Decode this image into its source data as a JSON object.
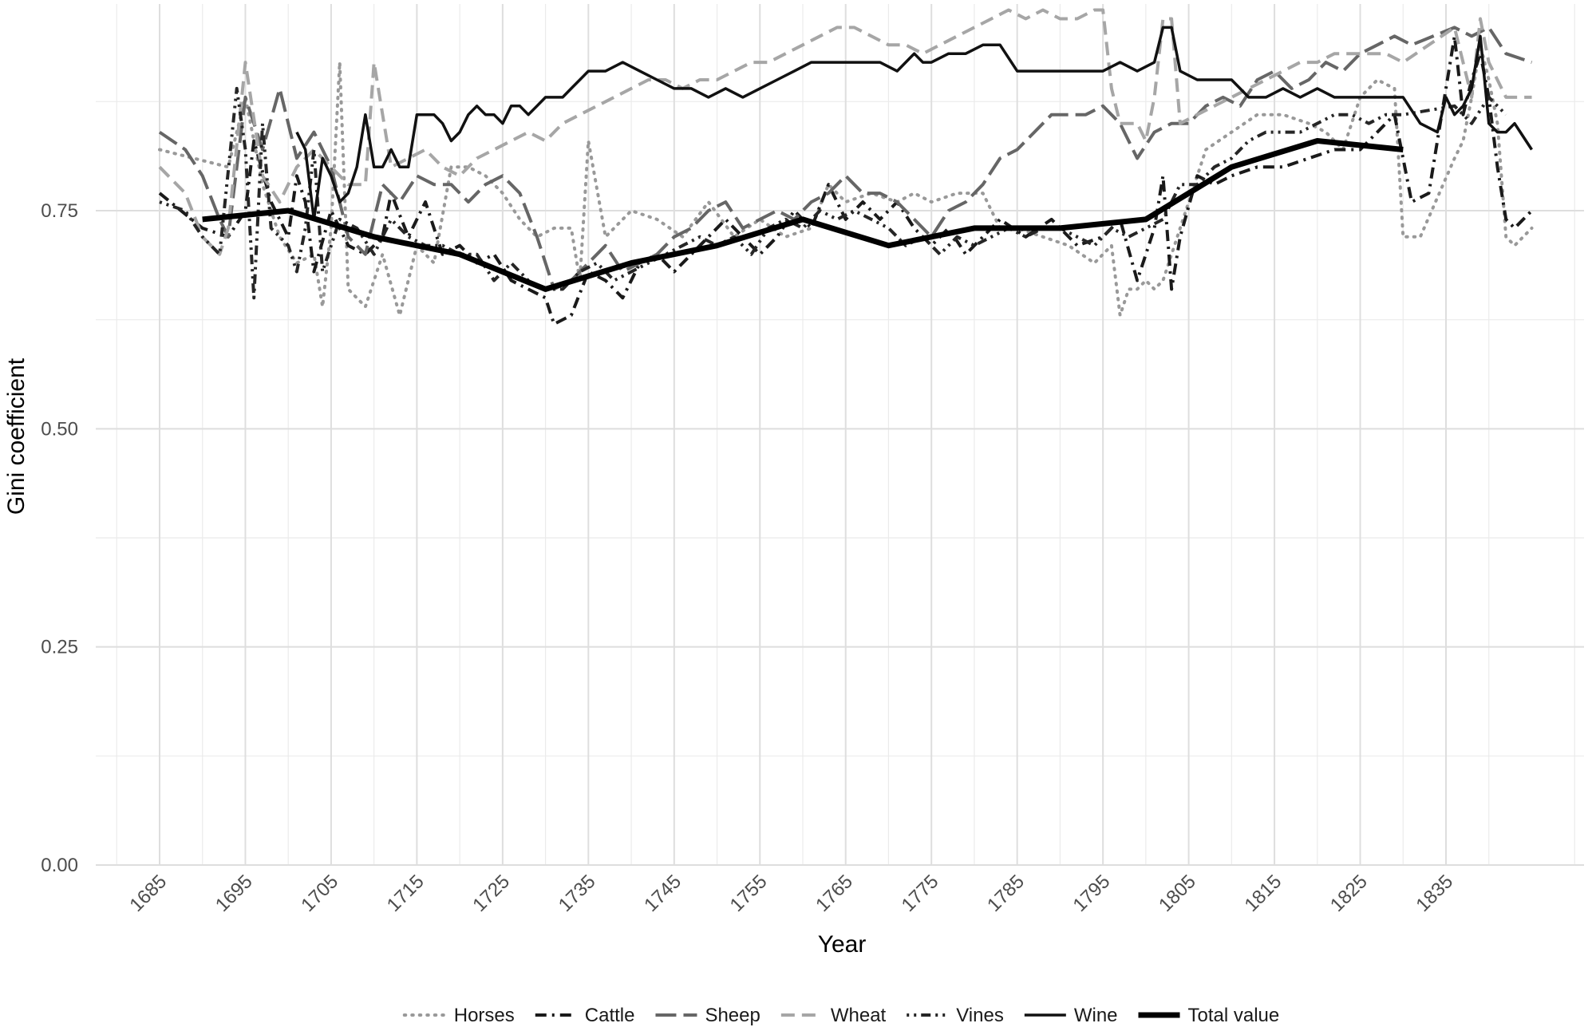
{
  "chart_data": {
    "type": "line",
    "xlabel": "Year",
    "ylabel": "Gini coefficient",
    "xlim": [
      1680,
      1853
    ],
    "ylim": [
      0,
      0.99
    ],
    "x_ticks": [
      "1685",
      "1695",
      "1705",
      "1715",
      "1725",
      "1735",
      "1745",
      "1755",
      "1765",
      "1775",
      "1785",
      "1795",
      "1805",
      "1815",
      "1825",
      "1835"
    ],
    "y_ticks": [
      "0.00",
      "0.25",
      "0.50",
      "0.75"
    ],
    "grid": true,
    "legend_position": "bottom",
    "series": [
      {
        "name": "Horses",
        "style": "dotted",
        "color": "#999999",
        "x": [
          1685,
          1689,
          1693,
          1695,
          1697,
          1699,
          1701,
          1703,
          1704,
          1705,
          1706,
          1707,
          1709,
          1711,
          1713,
          1715,
          1717,
          1719,
          1721,
          1723,
          1725,
          1727,
          1729,
          1731,
          1733,
          1734,
          1735,
          1737,
          1740,
          1743,
          1746,
          1749,
          1752,
          1755,
          1758,
          1761,
          1763,
          1765,
          1768,
          1771,
          1773,
          1775,
          1778,
          1781,
          1783,
          1785,
          1788,
          1791,
          1794,
          1796,
          1797,
          1798,
          1799,
          1800,
          1801,
          1802,
          1804,
          1807,
          1810,
          1813,
          1816,
          1819,
          1821,
          1823,
          1825,
          1827,
          1829,
          1830,
          1832,
          1836,
          1837,
          1838,
          1839,
          1840,
          1841,
          1842,
          1843,
          1845
        ],
        "y": [
          0.82,
          0.81,
          0.8,
          0.88,
          0.78,
          0.72,
          0.69,
          0.7,
          0.64,
          0.73,
          0.92,
          0.66,
          0.64,
          0.7,
          0.63,
          0.71,
          0.69,
          0.8,
          0.8,
          0.79,
          0.77,
          0.74,
          0.72,
          0.73,
          0.73,
          0.67,
          0.83,
          0.72,
          0.75,
          0.74,
          0.72,
          0.76,
          0.72,
          0.74,
          0.72,
          0.73,
          0.78,
          0.76,
          0.77,
          0.76,
          0.77,
          0.76,
          0.77,
          0.77,
          0.73,
          0.73,
          0.72,
          0.71,
          0.69,
          0.71,
          0.63,
          0.66,
          0.66,
          0.67,
          0.66,
          0.67,
          0.73,
          0.82,
          0.84,
          0.86,
          0.86,
          0.85,
          0.84,
          0.82,
          0.88,
          0.9,
          0.89,
          0.72,
          0.72,
          0.81,
          0.83,
          0.88,
          0.94,
          0.9,
          0.85,
          0.72,
          0.71,
          0.73
        ]
      },
      {
        "name": "Cattle",
        "style": "dashdot",
        "color": "#1a1a1a",
        "x": [
          1685,
          1690,
          1693,
          1695,
          1696,
          1698,
          1700,
          1701,
          1702,
          1703,
          1705,
          1707,
          1709,
          1711,
          1712,
          1714,
          1716,
          1718,
          1720,
          1722,
          1724,
          1726,
          1728,
          1730,
          1731,
          1733,
          1735,
          1737,
          1739,
          1741,
          1743,
          1745,
          1747,
          1749,
          1751,
          1753,
          1755,
          1757,
          1759,
          1761,
          1763,
          1765,
          1767,
          1769,
          1771,
          1773,
          1775,
          1777,
          1779,
          1781,
          1783,
          1786,
          1789,
          1792,
          1795,
          1797,
          1799,
          1800,
          1801,
          1802,
          1803,
          1804,
          1806,
          1808,
          1810,
          1813,
          1816,
          1819,
          1822,
          1825,
          1827,
          1829,
          1831,
          1833,
          1836,
          1837,
          1838,
          1839,
          1840,
          1841,
          1842,
          1843,
          1845
        ],
        "y": [
          0.77,
          0.73,
          0.72,
          0.75,
          0.83,
          0.76,
          0.72,
          0.79,
          0.76,
          0.68,
          0.75,
          0.71,
          0.7,
          0.72,
          0.77,
          0.72,
          0.76,
          0.7,
          0.71,
          0.69,
          0.7,
          0.67,
          0.66,
          0.65,
          0.62,
          0.63,
          0.68,
          0.67,
          0.65,
          0.69,
          0.7,
          0.68,
          0.7,
          0.72,
          0.74,
          0.72,
          0.7,
          0.72,
          0.75,
          0.73,
          0.78,
          0.74,
          0.76,
          0.74,
          0.76,
          0.73,
          0.71,
          0.73,
          0.7,
          0.72,
          0.74,
          0.72,
          0.74,
          0.71,
          0.72,
          0.74,
          0.67,
          0.7,
          0.73,
          0.79,
          0.66,
          0.72,
          0.79,
          0.78,
          0.79,
          0.8,
          0.8,
          0.81,
          0.82,
          0.82,
          0.84,
          0.86,
          0.76,
          0.77,
          0.95,
          0.86,
          0.9,
          0.93,
          0.88,
          0.8,
          0.74,
          0.73,
          0.75
        ]
      },
      {
        "name": "Sheep",
        "style": "longdash",
        "color": "#666666",
        "x": [
          1685,
          1688,
          1690,
          1692,
          1693,
          1695,
          1697,
          1699,
          1701,
          1703,
          1705,
          1707,
          1709,
          1711,
          1713,
          1715,
          1717,
          1719,
          1721,
          1723,
          1725,
          1727,
          1729,
          1731,
          1733,
          1735,
          1737,
          1739,
          1741,
          1743,
          1745,
          1747,
          1749,
          1751,
          1753,
          1755,
          1757,
          1759,
          1761,
          1763,
          1765,
          1767,
          1769,
          1771,
          1773,
          1775,
          1777,
          1779,
          1781,
          1783,
          1785,
          1787,
          1789,
          1791,
          1793,
          1795,
          1797,
          1799,
          1801,
          1803,
          1805,
          1807,
          1809,
          1811,
          1813,
          1815,
          1817,
          1819,
          1821,
          1823,
          1825,
          1827,
          1829,
          1831,
          1836,
          1838,
          1840,
          1842,
          1845
        ],
        "y": [
          0.84,
          0.82,
          0.79,
          0.74,
          0.72,
          0.88,
          0.82,
          0.89,
          0.81,
          0.84,
          0.8,
          0.72,
          0.7,
          0.78,
          0.76,
          0.79,
          0.78,
          0.78,
          0.76,
          0.78,
          0.79,
          0.77,
          0.72,
          0.66,
          0.67,
          0.69,
          0.71,
          0.68,
          0.69,
          0.7,
          0.72,
          0.73,
          0.75,
          0.76,
          0.73,
          0.74,
          0.75,
          0.74,
          0.76,
          0.77,
          0.79,
          0.77,
          0.77,
          0.76,
          0.74,
          0.72,
          0.75,
          0.76,
          0.78,
          0.81,
          0.82,
          0.84,
          0.86,
          0.86,
          0.86,
          0.87,
          0.85,
          0.81,
          0.84,
          0.85,
          0.85,
          0.87,
          0.88,
          0.87,
          0.9,
          0.91,
          0.89,
          0.9,
          0.92,
          0.91,
          0.93,
          0.94,
          0.95,
          0.94,
          0.96,
          0.95,
          0.96,
          0.93,
          0.92
        ]
      },
      {
        "name": "Wheat",
        "style": "dashed",
        "color": "#a6a6a6",
        "x": [
          1685,
          1688,
          1690,
          1692,
          1693,
          1695,
          1697,
          1699,
          1701,
          1703,
          1705,
          1707,
          1709,
          1710,
          1712,
          1714,
          1716,
          1718,
          1720,
          1722,
          1724,
          1726,
          1728,
          1730,
          1732,
          1734,
          1736,
          1738,
          1740,
          1742,
          1744,
          1746,
          1748,
          1750,
          1752,
          1754,
          1756,
          1758,
          1760,
          1762,
          1764,
          1766,
          1768,
          1770,
          1772,
          1774,
          1776,
          1778,
          1780,
          1782,
          1784,
          1786,
          1788,
          1790,
          1792,
          1794,
          1795,
          1796,
          1797,
          1799,
          1800,
          1801,
          1802,
          1803,
          1804,
          1806,
          1808,
          1810,
          1812,
          1814,
          1816,
          1818,
          1820,
          1822,
          1824,
          1826,
          1828,
          1830,
          1836,
          1838,
          1839,
          1840,
          1842,
          1845
        ],
        "y": [
          0.8,
          0.77,
          0.72,
          0.7,
          0.73,
          0.92,
          0.79,
          0.76,
          0.8,
          0.82,
          0.8,
          0.78,
          0.78,
          0.92,
          0.8,
          0.81,
          0.82,
          0.8,
          0.79,
          0.81,
          0.82,
          0.83,
          0.84,
          0.83,
          0.85,
          0.86,
          0.87,
          0.88,
          0.89,
          0.9,
          0.9,
          0.89,
          0.9,
          0.9,
          0.91,
          0.92,
          0.92,
          0.93,
          0.94,
          0.95,
          0.96,
          0.96,
          0.95,
          0.94,
          0.94,
          0.93,
          0.94,
          0.95,
          0.96,
          0.97,
          0.98,
          0.97,
          0.98,
          0.97,
          0.97,
          0.98,
          0.98,
          0.89,
          0.85,
          0.85,
          0.83,
          0.88,
          0.97,
          0.97,
          0.85,
          0.86,
          0.87,
          0.88,
          0.89,
          0.9,
          0.91,
          0.92,
          0.92,
          0.93,
          0.93,
          0.93,
          0.93,
          0.92,
          0.96,
          0.88,
          0.97,
          0.92,
          0.88,
          0.88
        ]
      },
      {
        "name": "Vines",
        "style": "dotdash",
        "color": "#262626",
        "x": [
          1685,
          1688,
          1690,
          1692,
          1694,
          1695,
          1696,
          1697,
          1698,
          1700,
          1701,
          1702,
          1703,
          1704,
          1706,
          1708,
          1710,
          1712,
          1714,
          1716,
          1718,
          1720,
          1722,
          1724,
          1726,
          1728,
          1730,
          1732,
          1734,
          1736,
          1738,
          1740,
          1742,
          1744,
          1746,
          1748,
          1750,
          1752,
          1754,
          1756,
          1758,
          1760,
          1762,
          1764,
          1766,
          1768,
          1770,
          1772,
          1774,
          1776,
          1778,
          1780,
          1782,
          1784,
          1786,
          1788,
          1790,
          1792,
          1794,
          1796,
          1798,
          1800,
          1802,
          1804,
          1806,
          1808,
          1810,
          1812,
          1814,
          1816,
          1818,
          1820,
          1822,
          1824,
          1826,
          1828,
          1830,
          1836,
          1838,
          1840,
          1842
        ],
        "y": [
          0.76,
          0.75,
          0.72,
          0.7,
          0.89,
          0.82,
          0.65,
          0.85,
          0.73,
          0.71,
          0.68,
          0.73,
          0.82,
          0.68,
          0.74,
          0.73,
          0.7,
          0.74,
          0.72,
          0.71,
          0.71,
          0.7,
          0.7,
          0.67,
          0.69,
          0.67,
          0.66,
          0.66,
          0.68,
          0.69,
          0.67,
          0.68,
          0.69,
          0.7,
          0.71,
          0.72,
          0.71,
          0.72,
          0.7,
          0.73,
          0.74,
          0.73,
          0.75,
          0.74,
          0.75,
          0.74,
          0.73,
          0.71,
          0.72,
          0.7,
          0.72,
          0.71,
          0.72,
          0.73,
          0.72,
          0.73,
          0.73,
          0.72,
          0.71,
          0.73,
          0.72,
          0.73,
          0.74,
          0.78,
          0.78,
          0.8,
          0.81,
          0.83,
          0.84,
          0.84,
          0.84,
          0.85,
          0.86,
          0.86,
          0.85,
          0.86,
          0.86,
          0.87,
          0.85,
          0.88,
          0.86
        ]
      },
      {
        "name": "Wine",
        "style": "solid",
        "color": "#111111",
        "x": [
          1701,
          1702,
          1703,
          1704,
          1705,
          1706,
          1707,
          1708,
          1709,
          1710,
          1711,
          1712,
          1713,
          1714,
          1715,
          1716,
          1717,
          1718,
          1719,
          1720,
          1721,
          1722,
          1723,
          1724,
          1725,
          1726,
          1727,
          1728,
          1729,
          1730,
          1731,
          1732,
          1733,
          1734,
          1735,
          1737,
          1739,
          1741,
          1743,
          1745,
          1747,
          1749,
          1751,
          1753,
          1755,
          1757,
          1759,
          1761,
          1763,
          1765,
          1767,
          1769,
          1771,
          1773,
          1774,
          1775,
          1777,
          1779,
          1781,
          1783,
          1785,
          1787,
          1789,
          1791,
          1793,
          1795,
          1797,
          1799,
          1801,
          1802,
          1803,
          1804,
          1806,
          1808,
          1810,
          1812,
          1814,
          1816,
          1818,
          1820,
          1822,
          1824,
          1826,
          1828,
          1830,
          1832,
          1834,
          1835,
          1836,
          1837,
          1838,
          1839,
          1840,
          1841,
          1842,
          1843,
          1845
        ],
        "y": [
          0.84,
          0.82,
          0.74,
          0.81,
          0.79,
          0.76,
          0.77,
          0.8,
          0.86,
          0.8,
          0.8,
          0.82,
          0.8,
          0.8,
          0.86,
          0.86,
          0.86,
          0.85,
          0.83,
          0.84,
          0.86,
          0.87,
          0.86,
          0.86,
          0.85,
          0.87,
          0.87,
          0.86,
          0.87,
          0.88,
          0.88,
          0.88,
          0.89,
          0.9,
          0.91,
          0.91,
          0.92,
          0.91,
          0.9,
          0.89,
          0.89,
          0.88,
          0.89,
          0.88,
          0.89,
          0.9,
          0.91,
          0.92,
          0.92,
          0.92,
          0.92,
          0.92,
          0.91,
          0.93,
          0.92,
          0.92,
          0.93,
          0.93,
          0.94,
          0.94,
          0.91,
          0.91,
          0.91,
          0.91,
          0.91,
          0.91,
          0.92,
          0.91,
          0.92,
          0.96,
          0.96,
          0.91,
          0.9,
          0.9,
          0.9,
          0.88,
          0.88,
          0.89,
          0.88,
          0.89,
          0.88,
          0.88,
          0.88,
          0.88,
          0.88,
          0.85,
          0.84,
          0.88,
          0.86,
          0.87,
          0.89,
          0.95,
          0.85,
          0.84,
          0.84,
          0.85,
          0.82
        ]
      },
      {
        "name": "Total value",
        "style": "solid-thick",
        "color": "#000000",
        "x": [
          1690,
          1700,
          1710,
          1720,
          1730,
          1740,
          1750,
          1760,
          1770,
          1780,
          1790,
          1800,
          1805,
          1810,
          1820,
          1830
        ],
        "y": [
          0.74,
          0.75,
          0.72,
          0.7,
          0.66,
          0.69,
          0.71,
          0.74,
          0.71,
          0.73,
          0.73,
          0.74,
          0.77,
          0.8,
          0.83,
          0.82
        ]
      }
    ]
  }
}
